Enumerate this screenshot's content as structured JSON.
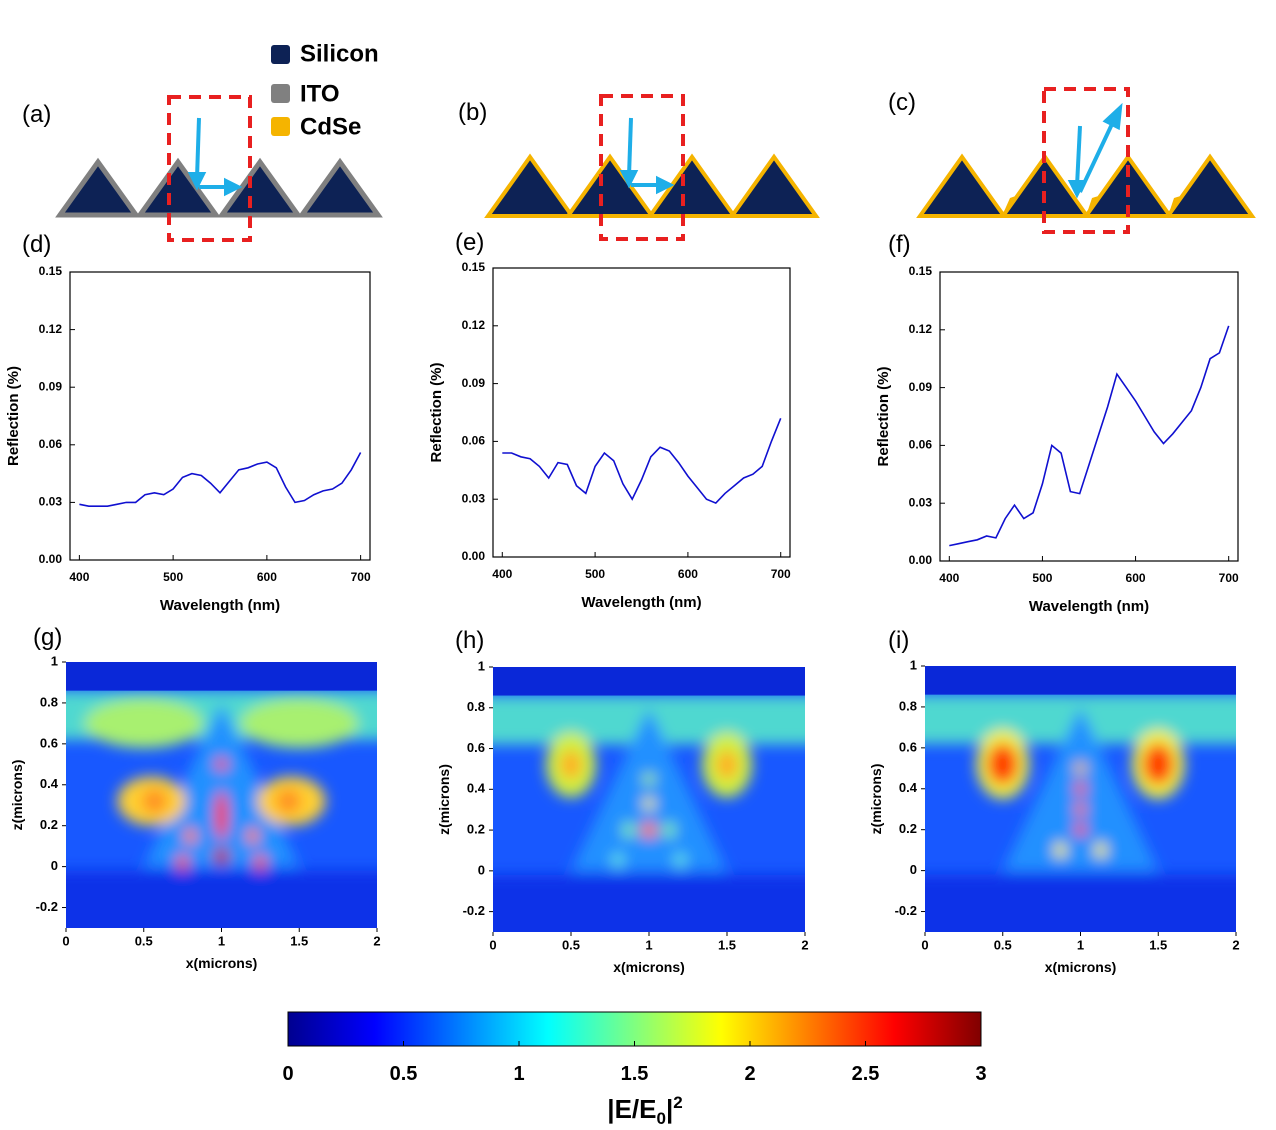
{
  "diagram": {
    "panels": [
      "(a)",
      "(b)",
      "(c)"
    ],
    "legend": [
      {
        "name": "Silicon",
        "color": "#0d2255"
      },
      {
        "name": "ITO",
        "color": "#808080"
      },
      {
        "name": "CdSe",
        "color": "#f5b400"
      }
    ]
  },
  "chart_data": [
    {
      "type": "line",
      "panel": "(d)",
      "xlabel": "Wavelength (nm)",
      "ylabel": "Reflection (%)",
      "color": "#1010d0",
      "x": [
        400,
        410,
        420,
        430,
        440,
        450,
        460,
        470,
        480,
        490,
        500,
        510,
        520,
        530,
        540,
        550,
        560,
        570,
        580,
        590,
        600,
        610,
        620,
        630,
        640,
        650,
        660,
        670,
        680,
        690,
        700
      ],
      "values": [
        0.029,
        0.028,
        0.028,
        0.028,
        0.029,
        0.03,
        0.03,
        0.034,
        0.035,
        0.034,
        0.037,
        0.043,
        0.045,
        0.044,
        0.04,
        0.035,
        0.041,
        0.047,
        0.048,
        0.05,
        0.051,
        0.048,
        0.038,
        0.03,
        0.031,
        0.034,
        0.036,
        0.037,
        0.04,
        0.047,
        0.056
      ],
      "xlim": [
        390,
        710
      ],
      "xticks": [
        400,
        500,
        600,
        700
      ],
      "ylim": [
        0,
        0.15
      ],
      "yticks": [
        {
          "value": 0,
          "label": "0.00"
        },
        0.03,
        0.06,
        0.09,
        0.12,
        0.15
      ]
    },
    {
      "type": "line",
      "panel": "(e)",
      "xlabel": "Wavelength (nm)",
      "ylabel": "Reflection (%)",
      "color": "#1010d0",
      "x": [
        400,
        410,
        420,
        430,
        440,
        450,
        460,
        470,
        480,
        490,
        500,
        510,
        520,
        530,
        540,
        550,
        560,
        570,
        580,
        590,
        600,
        610,
        620,
        630,
        640,
        650,
        660,
        670,
        680,
        690,
        700
      ],
      "values": [
        0.054,
        0.054,
        0.052,
        0.051,
        0.047,
        0.041,
        0.049,
        0.048,
        0.037,
        0.033,
        0.047,
        0.054,
        0.05,
        0.038,
        0.03,
        0.04,
        0.052,
        0.057,
        0.055,
        0.049,
        0.042,
        0.036,
        0.03,
        0.028,
        0.033,
        0.037,
        0.041,
        0.043,
        0.047,
        0.06,
        0.072
      ],
      "xlim": [
        390,
        710
      ],
      "xticks": [
        400,
        500,
        600,
        700
      ],
      "ylim": [
        0,
        0.15
      ],
      "yticks": [
        {
          "value": 0,
          "label": "0.00"
        },
        0.03,
        0.06,
        0.09,
        0.12,
        0.15
      ]
    },
    {
      "type": "line",
      "panel": "(f)",
      "xlabel": "Wavelength (nm)",
      "ylabel": "Reflection (%)",
      "color": "#1010d0",
      "x": [
        400,
        410,
        420,
        430,
        440,
        450,
        460,
        470,
        480,
        490,
        500,
        510,
        520,
        530,
        540,
        550,
        560,
        570,
        580,
        590,
        600,
        610,
        620,
        630,
        640,
        650,
        660,
        670,
        680,
        690,
        700
      ],
      "values": [
        0.008,
        0.009,
        0.01,
        0.011,
        0.013,
        0.012,
        0.022,
        0.029,
        0.022,
        0.025,
        0.04,
        0.06,
        0.056,
        0.036,
        0.035,
        0.05,
        0.065,
        0.08,
        0.097,
        0.09,
        0.083,
        0.075,
        0.067,
        0.061,
        0.066,
        0.072,
        0.078,
        0.09,
        0.105,
        0.108,
        0.122
      ],
      "xlim": [
        390,
        710
      ],
      "xticks": [
        400,
        500,
        600,
        700
      ],
      "ylim": [
        0,
        0.15
      ],
      "yticks": [
        {
          "value": 0,
          "label": "0.00"
        },
        0.03,
        0.06,
        0.09,
        0.12,
        0.15
      ]
    },
    {
      "type": "heatmap",
      "panel": "(g)",
      "xlabel": "x(microns)",
      "ylabel": "z(microns)",
      "xlim": [
        0,
        2
      ],
      "xticks": [
        0,
        0.5,
        1,
        1.5,
        2
      ],
      "ylim": [
        -0.3,
        1
      ],
      "yticks": [
        -0.2,
        0,
        0.2,
        0.4,
        0.6,
        0.8,
        1
      ]
    },
    {
      "type": "heatmap",
      "panel": "(h)",
      "xlabel": "x(microns)",
      "ylabel": "z(microns)",
      "xlim": [
        0,
        2
      ],
      "xticks": [
        0,
        0.5,
        1,
        1.5,
        2
      ],
      "ylim": [
        -0.3,
        1
      ],
      "yticks": [
        -0.2,
        0,
        0.2,
        0.4,
        0.6,
        0.8,
        1
      ]
    },
    {
      "type": "heatmap",
      "panel": "(i)",
      "xlabel": "x(microns)",
      "ylabel": "z(microns)",
      "xlim": [
        0,
        2
      ],
      "xticks": [
        0,
        0.5,
        1,
        1.5,
        2
      ],
      "ylim": [
        -0.3,
        1
      ],
      "yticks": [
        -0.2,
        0,
        0.2,
        0.4,
        0.6,
        0.8,
        1
      ]
    }
  ],
  "colorbar": {
    "lim": [
      0,
      3
    ],
    "ticks": [
      0,
      0.5,
      1,
      1.5,
      2,
      2.5,
      3
    ],
    "label": {
      "text": "|E/E",
      "sub": "0",
      "close": "|",
      "sup": "2"
    }
  }
}
